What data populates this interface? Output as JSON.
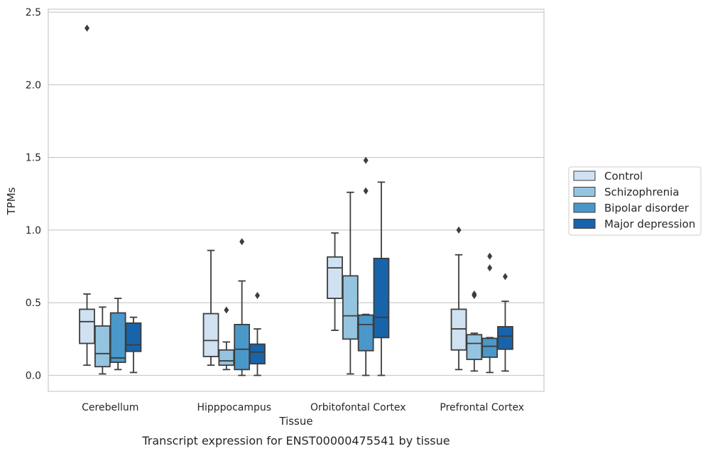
{
  "caption": "Transcript expression for ENST00000475541 by tissue",
  "chart_data": {
    "type": "box",
    "title": "",
    "xlabel": "Tissue",
    "ylabel": "TPMs",
    "ylim": [
      -0.11,
      2.52
    ],
    "yticks": [
      "0.0",
      "0.5",
      "1.0",
      "1.5",
      "2.0",
      "2.5"
    ],
    "ytick_values": [
      0,
      0.5,
      1.0,
      1.5,
      2.0,
      2.5
    ],
    "grid": "horizontal",
    "legend_position": "right",
    "categories": [
      "Cerebellum",
      "Hipppocampus",
      "Orbitofontal Cortex",
      "Prefrontal Cortex"
    ],
    "series": [
      {
        "name": "Control",
        "color": "#d0e1f2",
        "boxes": [
          {
            "whislo": 0.07,
            "q1": 0.22,
            "med": 0.37,
            "q3": 0.455,
            "whishi": 0.56,
            "fliers": [
              2.39
            ]
          },
          {
            "whislo": 0.07,
            "q1": 0.13,
            "med": 0.24,
            "q3": 0.425,
            "whishi": 0.86,
            "fliers": []
          },
          {
            "whislo": 0.31,
            "q1": 0.53,
            "med": 0.74,
            "q3": 0.815,
            "whishi": 0.98,
            "fliers": []
          },
          {
            "whislo": 0.04,
            "q1": 0.175,
            "med": 0.32,
            "q3": 0.455,
            "whishi": 0.83,
            "fliers": [
              1.0
            ]
          }
        ]
      },
      {
        "name": "Schizophrenia",
        "color": "#94c4df",
        "boxes": [
          {
            "whislo": 0.01,
            "q1": 0.06,
            "med": 0.15,
            "q3": 0.34,
            "whishi": 0.47,
            "fliers": []
          },
          {
            "whislo": 0.04,
            "q1": 0.07,
            "med": 0.1,
            "q3": 0.175,
            "whishi": 0.23,
            "fliers": [
              0.45
            ]
          },
          {
            "whislo": 0.01,
            "q1": 0.25,
            "med": 0.41,
            "q3": 0.685,
            "whishi": 1.26,
            "fliers": []
          },
          {
            "whislo": 0.03,
            "q1": 0.11,
            "med": 0.22,
            "q3": 0.28,
            "whishi": 0.29,
            "fliers": [
              0.55,
              0.56
            ]
          }
        ]
      },
      {
        "name": "Bipolar disorder",
        "color": "#4a98c9",
        "boxes": [
          {
            "whislo": 0.04,
            "q1": 0.09,
            "med": 0.12,
            "q3": 0.43,
            "whishi": 0.53,
            "fliers": []
          },
          {
            "whislo": 0.0,
            "q1": 0.04,
            "med": 0.18,
            "q3": 0.35,
            "whishi": 0.65,
            "fliers": [
              0.92
            ]
          },
          {
            "whislo": 0.0,
            "q1": 0.17,
            "med": 0.35,
            "q3": 0.415,
            "whishi": 0.42,
            "fliers": [
              1.27,
              1.48
            ]
          },
          {
            "whislo": 0.02,
            "q1": 0.125,
            "med": 0.2,
            "q3": 0.255,
            "whishi": 0.26,
            "fliers": [
              0.74,
              0.82
            ]
          }
        ]
      },
      {
        "name": "Major depression",
        "color": "#1764ab",
        "boxes": [
          {
            "whislo": 0.02,
            "q1": 0.165,
            "med": 0.21,
            "q3": 0.36,
            "whishi": 0.4,
            "fliers": []
          },
          {
            "whislo": 0.0,
            "q1": 0.08,
            "med": 0.16,
            "q3": 0.215,
            "whishi": 0.32,
            "fliers": [
              0.55
            ]
          },
          {
            "whislo": 0.0,
            "q1": 0.26,
            "med": 0.4,
            "q3": 0.805,
            "whishi": 1.33,
            "fliers": []
          },
          {
            "whislo": 0.03,
            "q1": 0.18,
            "med": 0.27,
            "q3": 0.335,
            "whishi": 0.51,
            "fliers": [
              0.68
            ]
          }
        ]
      }
    ]
  }
}
